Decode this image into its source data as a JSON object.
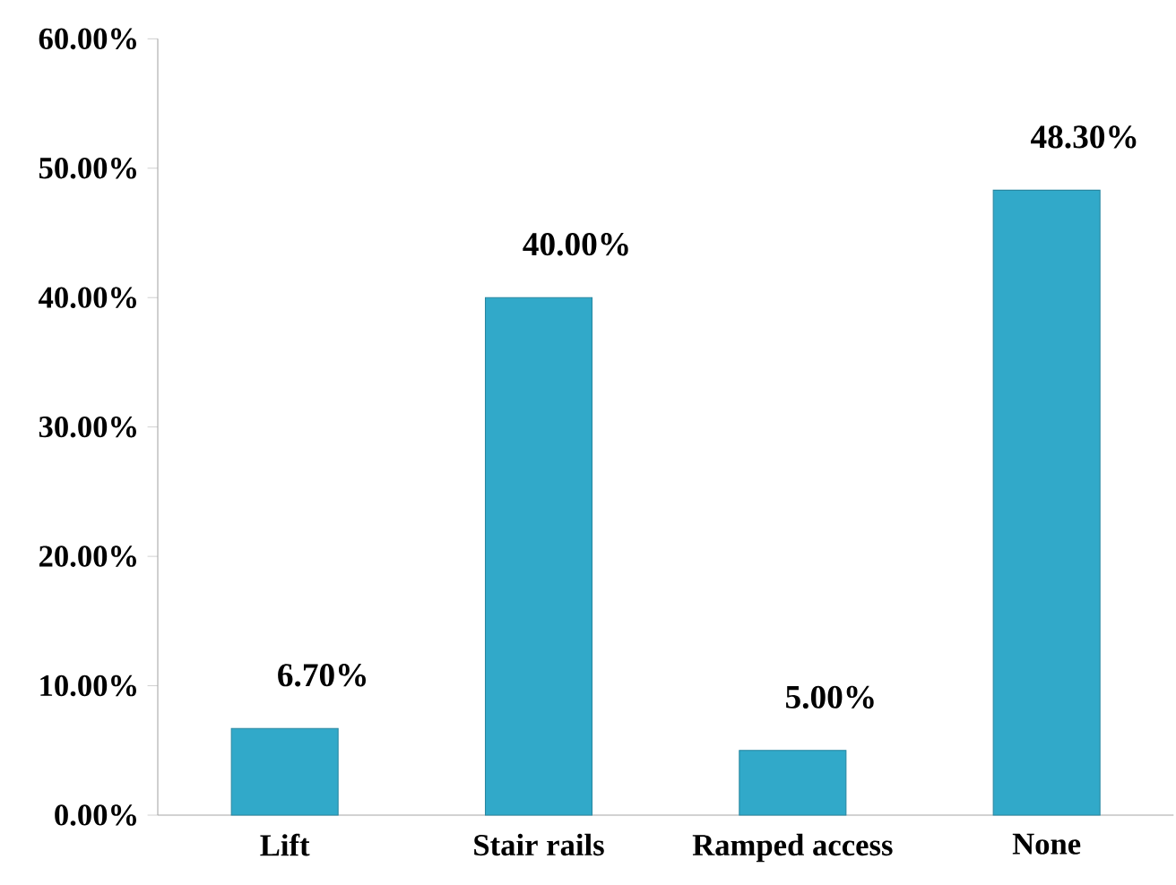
{
  "chart_data": {
    "type": "bar",
    "categories": [
      "Lift",
      "Stair rails",
      "Ramped access",
      "None"
    ],
    "values": [
      6.7,
      40,
      5,
      48.3
    ],
    "value_labels": [
      "6.70%",
      "40.00%",
      "5.00%",
      "48.30%"
    ],
    "color": "#31a9c9",
    "ylim": [
      0,
      60
    ],
    "yticks": [
      {
        "value": 0,
        "label": "0.00%"
      },
      {
        "value": 10,
        "label": "10.00%"
      },
      {
        "value": 20,
        "label": "20.00%"
      },
      {
        "value": 30,
        "label": "30.00%"
      },
      {
        "value": 40,
        "label": "40.00%"
      },
      {
        "value": 50,
        "label": "50.00%"
      },
      {
        "value": 60,
        "label": "60.00%"
      }
    ],
    "grid": false
  }
}
